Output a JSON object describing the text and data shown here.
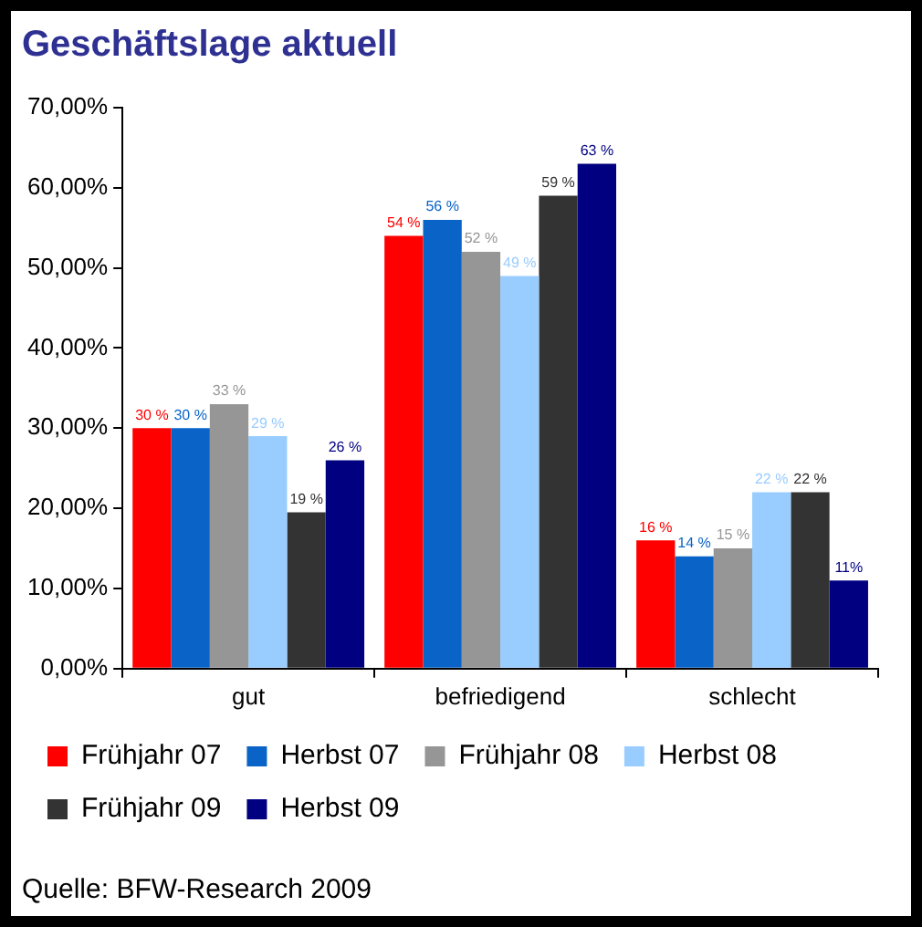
{
  "chart_data": {
    "type": "bar",
    "title": "Geschäftslage aktuell",
    "categories": [
      "gut",
      "befriedigend",
      "schlecht"
    ],
    "series": [
      {
        "name": "Frühjahr 07",
        "color": "#ff0000",
        "values": [
          30,
          54,
          16
        ],
        "value_labels": [
          "30 %",
          "54 %",
          "16 %"
        ]
      },
      {
        "name": "Herbst 07",
        "color": "#0a64c8",
        "values": [
          30,
          56,
          14
        ],
        "value_labels": [
          "30 %",
          "56 %",
          "14 %"
        ]
      },
      {
        "name": "Frühjahr 08",
        "color": "#969696",
        "values": [
          33,
          52,
          15
        ],
        "value_labels": [
          "33 %",
          "52 %",
          "15 %"
        ]
      },
      {
        "name": "Herbst 08",
        "color": "#99ccff",
        "values": [
          29,
          49,
          22
        ],
        "value_labels": [
          "29 %",
          "49 %",
          "22 %"
        ]
      },
      {
        "name": "Frühjahr 09",
        "color": "#333333",
        "values": [
          19.5,
          59,
          22
        ],
        "value_labels": [
          "19 %",
          "59 %",
          "22 %"
        ]
      },
      {
        "name": "Herbst 09",
        "color": "#000080",
        "values": [
          26,
          63,
          11
        ],
        "value_labels": [
          "26 %",
          "63 %",
          "11%"
        ]
      }
    ],
    "ylim": [
      0,
      70
    ],
    "yticks": [
      {
        "value": 0,
        "label": "0,00%"
      },
      {
        "value": 10,
        "label": "10,00%"
      },
      {
        "value": 20,
        "label": "20,00%"
      },
      {
        "value": 30,
        "label": "30,00%"
      },
      {
        "value": 40,
        "label": "40,00%"
      },
      {
        "value": 50,
        "label": "50,00%"
      },
      {
        "value": 60,
        "label": "60,00%"
      },
      {
        "value": 70,
        "label": "70,00%"
      }
    ],
    "grid": false,
    "legend": "bottom",
    "annotations": [
      "Quelle: BFW-Research 2009"
    ]
  }
}
